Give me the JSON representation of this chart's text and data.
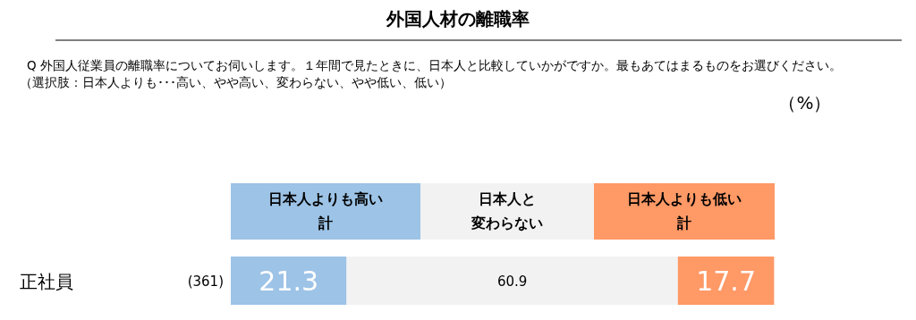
{
  "chart_data": {
    "type": "bar",
    "orientation": "horizontal",
    "stacked": true,
    "title": "外国人材の離職率",
    "subtitle": "Q  外国人従業員の離職率についてお伺いします。１年間で見たときに、日本人と比較していかがですか。最もあてはまるものをお選びください。",
    "annotations": [
      "（%）",
      "(361)",
      "（選択肢：日本人よりも･･･高い、やや高い、変わらない、やや低い、低い）"
    ],
    "categories": [
      "正社員"
    ],
    "xlim": [
      0,
      100
    ],
    "legend": "top",
    "data_labels": true,
    "series": [
      {
        "name": "日本人よりも高い計",
        "color": "#9dc3e6",
        "values": [
          21.3
        ]
      },
      {
        "name": "日本人と変わらない",
        "color": "#f2f2f2",
        "values": [
          60.9
        ]
      },
      {
        "name": "日本人よりも低い計",
        "color": "#ff9966",
        "values": [
          17.7
        ]
      }
    ]
  }
}
